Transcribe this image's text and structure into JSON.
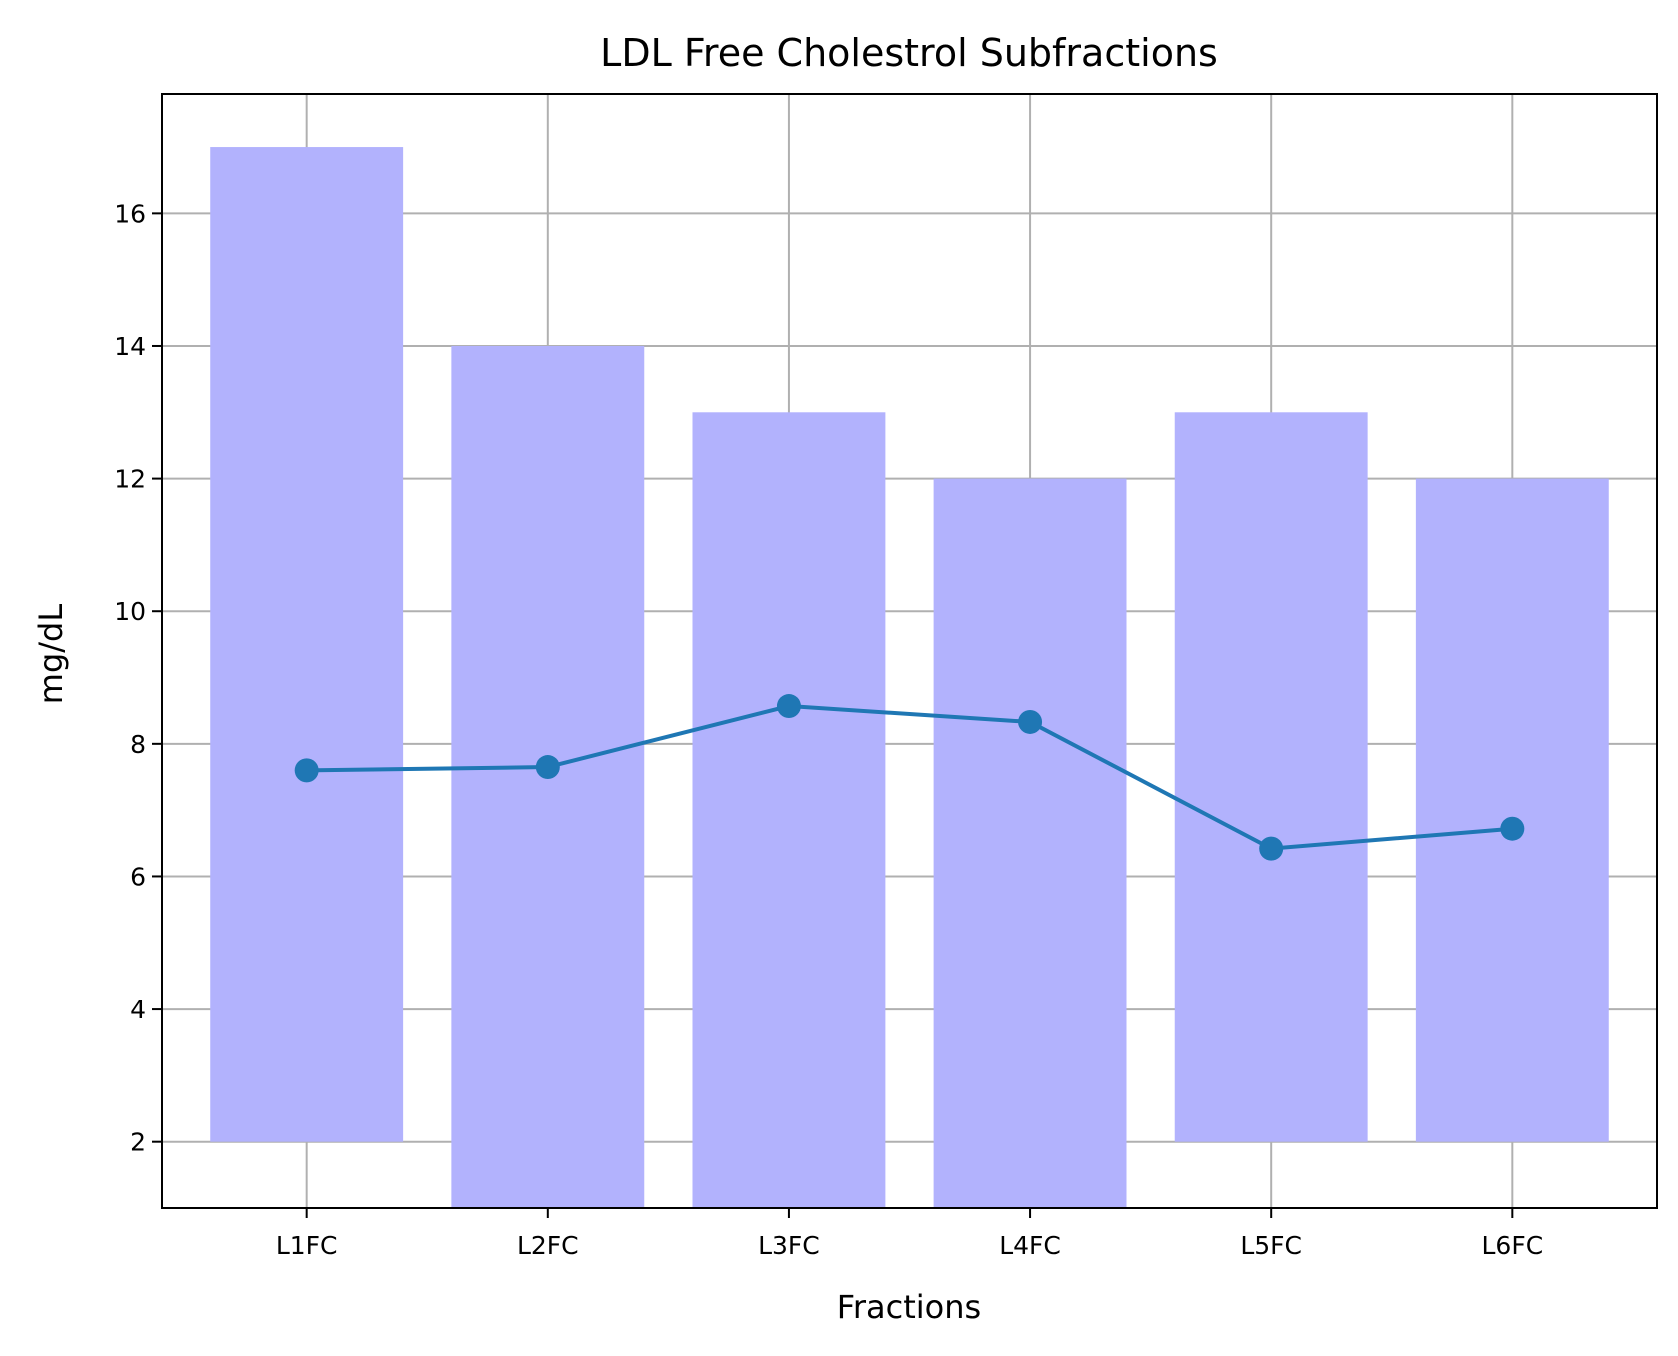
{
  "chart_data": {
    "type": "bar",
    "title": "LDL Free Cholestrol Subfractions",
    "xlabel": "Fractions",
    "ylabel": "mg/dL",
    "categories": [
      "L1FC",
      "L2FC",
      "L3FC",
      "L4FC",
      "L5FC",
      "L6FC"
    ],
    "ylim": [
      1.0,
      17.8
    ],
    "yticks": [
      2,
      4,
      6,
      8,
      10,
      12,
      14,
      16
    ],
    "grid": true,
    "bars": {
      "bottom": [
        2,
        1,
        1,
        1,
        2,
        2
      ],
      "top": [
        17,
        14,
        13,
        12,
        13,
        12
      ],
      "color": "#b2b2fd"
    },
    "series": [
      {
        "type": "line",
        "values": [
          7.6,
          7.65,
          8.57,
          8.33,
          6.42,
          6.72
        ],
        "color": "#1f77b4"
      }
    ],
    "colors": {
      "grid": "#b0b0b0",
      "axes": "#000000"
    }
  }
}
